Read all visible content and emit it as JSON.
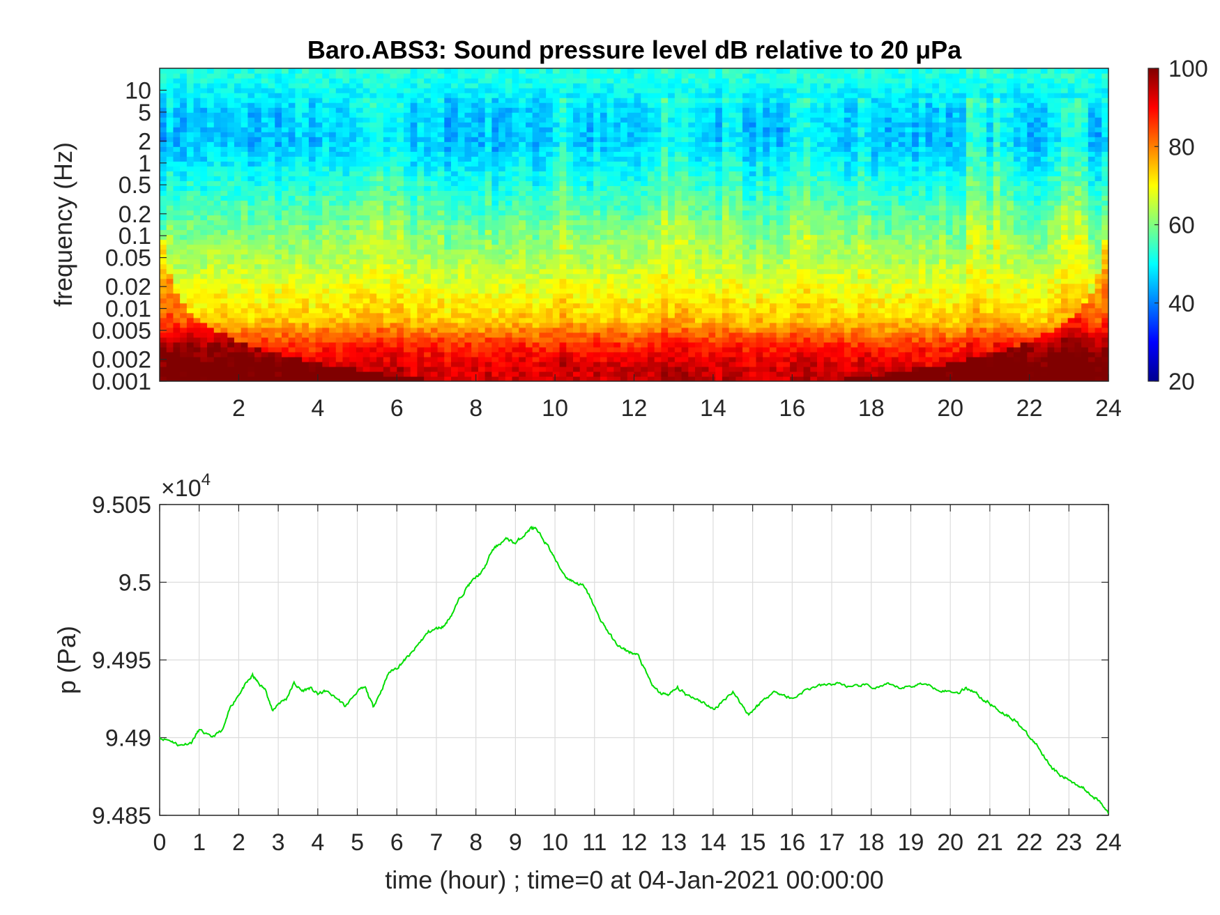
{
  "chart_data": [
    {
      "type": "heatmap",
      "title": "Baro.ABS3: Sound pressure level dB relative to 20 μPa",
      "xlabel": "",
      "ylabel": "frequency (Hz)",
      "xlim": [
        0,
        24
      ],
      "x_ticks": [
        "2",
        "4",
        "6",
        "8",
        "10",
        "12",
        "14",
        "16",
        "18",
        "20",
        "22",
        "24"
      ],
      "y_scale": "log",
      "ylim": [
        0.001,
        20
      ],
      "y_ticks": [
        "10",
        "5",
        "2",
        "1",
        "0.5",
        "0.2",
        "0.1",
        "0.05",
        "0.02",
        "0.01",
        "0.005",
        "0.002",
        "0.001"
      ],
      "colorbar": {
        "limits": [
          20,
          100
        ],
        "ticks": [
          "100",
          "80",
          "60",
          "40",
          "20"
        ],
        "colormap": "jet"
      },
      "frequency_bands": [
        {
          "f": 0.0015,
          "level_db": 93
        },
        {
          "f": 0.003,
          "level_db": 87
        },
        {
          "f": 0.007,
          "level_db": 74
        },
        {
          "f": 0.02,
          "level_db": 68
        },
        {
          "f": 0.1,
          "level_db": 60
        },
        {
          "f": 0.5,
          "level_db": 52
        },
        {
          "f": 2,
          "level_db": 45
        },
        {
          "f": 5,
          "level_db": 46
        },
        {
          "f": 15,
          "level_db": 52
        }
      ],
      "broadband_hours": [
        5.4,
        6.0,
        10.2,
        12.8,
        13.3,
        14.5,
        16.2,
        17.8,
        20.6,
        21.2,
        22.8,
        23.3
      ]
    },
    {
      "type": "line",
      "title": "",
      "xlabel": "time (hour) ; time=0 at 04-Jan-2021 00:00:00",
      "ylabel": "p (Pa)",
      "exponent_label": "×10",
      "exponent_power": "4",
      "xlim": [
        0,
        24
      ],
      "ylim": [
        94850,
        95050
      ],
      "x_ticks": [
        "0",
        "1",
        "2",
        "3",
        "4",
        "5",
        "6",
        "7",
        "8",
        "9",
        "10",
        "11",
        "12",
        "13",
        "14",
        "15",
        "16",
        "17",
        "18",
        "19",
        "20",
        "21",
        "22",
        "23",
        "24"
      ],
      "y_ticks": [
        "9.485",
        "9.49",
        "9.495",
        "9.5",
        "9.505"
      ],
      "grid": true,
      "series": [
        {
          "color": "#00dd00",
          "x": [
            0,
            0.3,
            0.5,
            0.8,
            1.0,
            1.3,
            1.6,
            1.8,
            2.0,
            2.2,
            2.35,
            2.5,
            2.7,
            2.85,
            3.0,
            3.2,
            3.4,
            3.6,
            3.8,
            4.0,
            4.2,
            4.5,
            4.7,
            5.0,
            5.2,
            5.4,
            5.6,
            5.8,
            6.0,
            6.2,
            6.4,
            6.6,
            6.8,
            7.0,
            7.2,
            7.4,
            7.6,
            7.8,
            8.0,
            8.2,
            8.4,
            8.6,
            8.8,
            9.0,
            9.2,
            9.4,
            9.5,
            9.7,
            9.9,
            10.1,
            10.3,
            10.5,
            10.7,
            10.9,
            11.1,
            11.3,
            11.5,
            11.7,
            11.9,
            12.1,
            12.3,
            12.5,
            12.7,
            12.9,
            13.1,
            13.3,
            13.6,
            13.8,
            14.0,
            14.2,
            14.5,
            14.7,
            14.9,
            15.1,
            15.3,
            15.6,
            15.8,
            16.0,
            16.3,
            16.6,
            16.9,
            17.2,
            17.5,
            17.8,
            18.1,
            18.4,
            18.7,
            19.0,
            19.3,
            19.6,
            19.9,
            20.2,
            20.4,
            20.6,
            20.8,
            21.0,
            21.2,
            21.4,
            21.6,
            21.8,
            22.0,
            22.2,
            22.4,
            22.6,
            22.8,
            23.0,
            23.2,
            23.4,
            23.6,
            23.8,
            24.0
          ],
          "y": [
            94900,
            94898,
            94895,
            94897,
            94905,
            94900,
            94905,
            94920,
            94928,
            94935,
            94940,
            94935,
            94930,
            94917,
            94922,
            94925,
            94935,
            94930,
            94932,
            94928,
            94930,
            94925,
            94920,
            94930,
            94932,
            94920,
            94930,
            94942,
            94945,
            94950,
            94955,
            94962,
            94968,
            94970,
            94972,
            94980,
            94990,
            94998,
            95003,
            95008,
            95020,
            95025,
            95028,
            95025,
            95030,
            95035,
            95034,
            95028,
            95020,
            95010,
            95003,
            95000,
            94998,
            94990,
            94978,
            94970,
            94962,
            94957,
            94955,
            94953,
            94942,
            94932,
            94928,
            94928,
            94932,
            94928,
            94925,
            94922,
            94918,
            94922,
            94930,
            94922,
            94915,
            94920,
            94925,
            94930,
            94927,
            94925,
            94930,
            94933,
            94934,
            94935,
            94932,
            94934,
            94932,
            94934,
            94932,
            94933,
            94935,
            94932,
            94930,
            94929,
            94932,
            94930,
            94925,
            94922,
            94918,
            94915,
            94912,
            94907,
            94900,
            94895,
            94887,
            94880,
            94875,
            94873,
            94870,
            94867,
            94863,
            94858,
            94851
          ]
        }
      ]
    }
  ]
}
